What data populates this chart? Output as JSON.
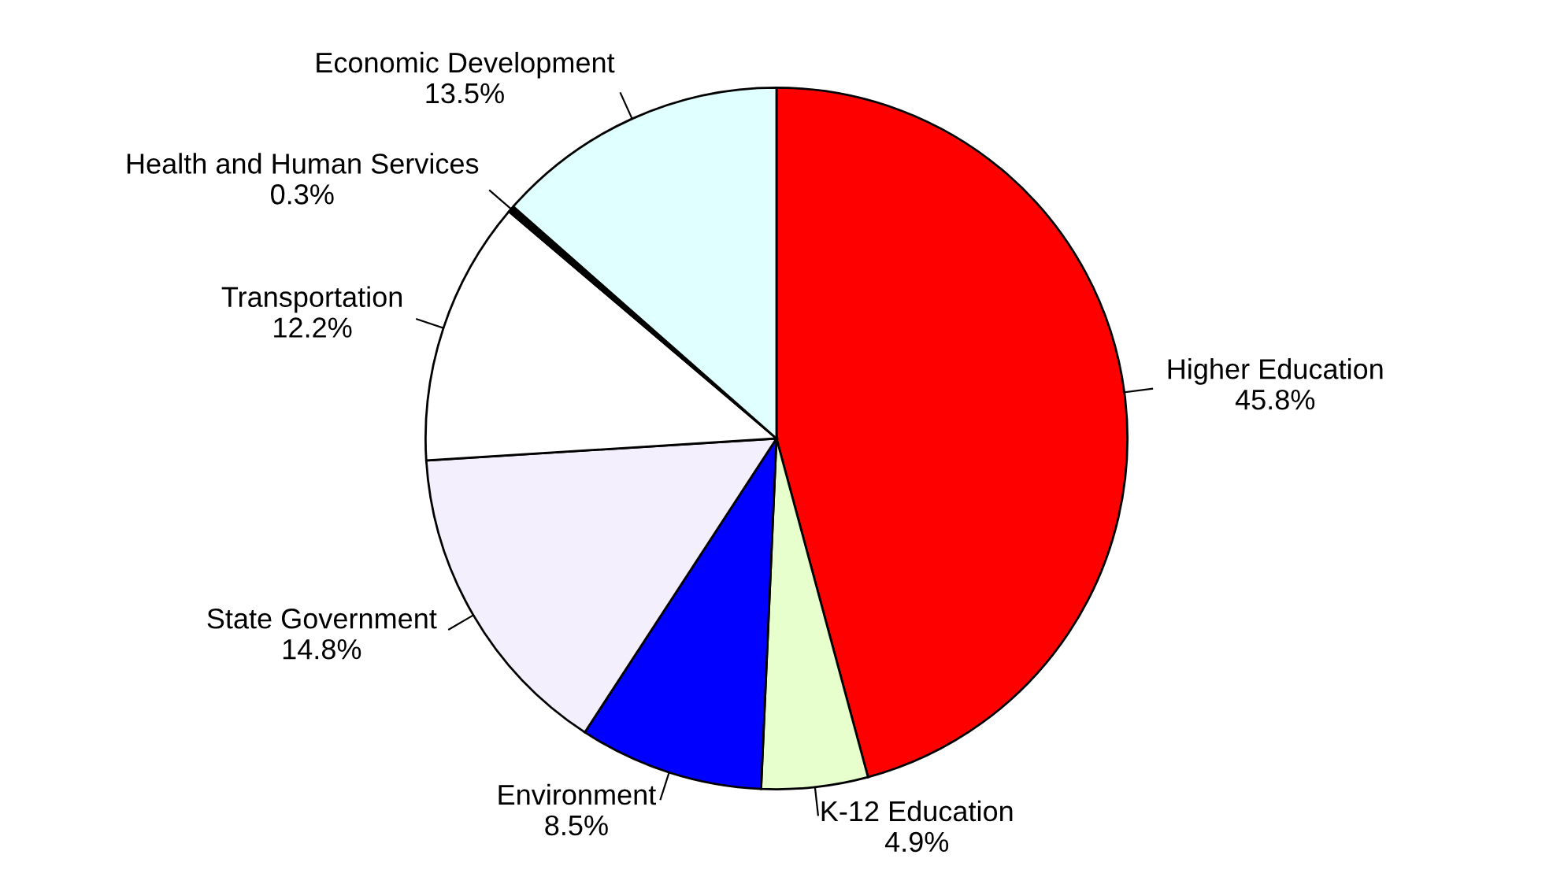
{
  "chart_data": {
    "type": "pie",
    "categories": [
      "Higher Education",
      "K-12 Education",
      "Environment",
      "State Government",
      "Transportation",
      "Health and Human Services",
      "Economic Development"
    ],
    "values": [
      45.8,
      4.9,
      8.5,
      14.8,
      12.2,
      0.3,
      13.5
    ],
    "value_labels": [
      "45.8%",
      "4.9%",
      "8.5%",
      "14.8%",
      "12.2%",
      "0.3%",
      "13.5%"
    ],
    "colors": [
      "#ff0000",
      "#e6ffcc",
      "#0000ff",
      "#f3effc",
      "#ffffff",
      "#000000",
      "#e0ffff"
    ],
    "legend": false
  }
}
